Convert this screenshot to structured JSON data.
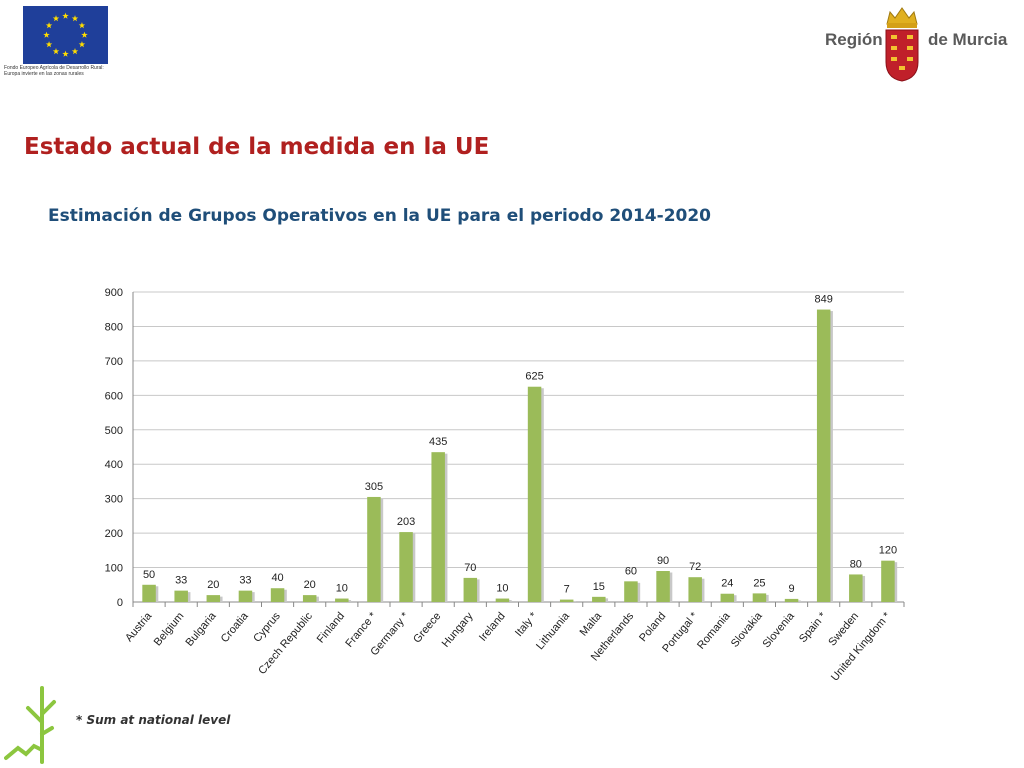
{
  "header": {
    "eu_caption_line1": "Fondo Europeo Agrícola de Desarrollo Rural:",
    "eu_caption_line2": "Europa invierte en las zonas rurales",
    "murcia_word1": "Región",
    "murcia_word2": "de Murcia"
  },
  "section_title": "Estado actual de la medida en la UE",
  "footnote": "* Sum at national level",
  "colors": {
    "bar": "#9bbb59",
    "bar_shadow": "#c8c8c8",
    "title": "#b0201f",
    "chart_title": "#1f4e79",
    "eu_blue": "#1f3f9a",
    "eu_star": "#ffdd00",
    "sprout": "#8cc63f"
  },
  "chart_data": {
    "type": "bar",
    "title": "Estimación de Grupos Operativos en la UE para el periodo  2014-2020",
    "categories": [
      "Austria",
      "Belgium",
      "Bulgaria",
      "Croatia",
      "Cyprus",
      "Czech Republic",
      "Finland",
      "France *",
      "Germany *",
      "Greece",
      "Hungary",
      "Ireland",
      "Italy *",
      "Lithuania",
      "Malta",
      "Netherlands",
      "Poland",
      "Portugal *",
      "Romania",
      "Slovakia",
      "Slovenia",
      "Spain *",
      "Sweden",
      "United Kingdom *"
    ],
    "values": [
      50,
      33,
      20,
      33,
      40,
      20,
      10,
      305,
      203,
      435,
      70,
      10,
      625,
      7,
      15,
      60,
      90,
      72,
      24,
      25,
      9,
      849,
      80,
      120
    ],
    "ylim": [
      0,
      900
    ],
    "yticks": [
      0,
      100,
      200,
      300,
      400,
      500,
      600,
      700,
      800,
      900
    ],
    "grid": true,
    "legend": "none",
    "data_labels": true
  }
}
